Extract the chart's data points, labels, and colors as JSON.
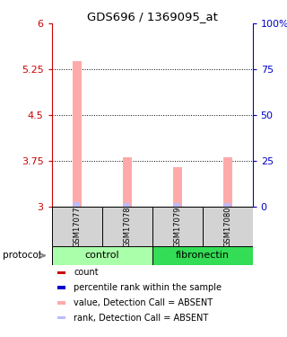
{
  "title": "GDS696 / 1369095_at",
  "samples": [
    "GSM17077",
    "GSM17078",
    "GSM17079",
    "GSM17080"
  ],
  "bar_values": [
    5.38,
    3.82,
    3.65,
    3.82
  ],
  "rank_values": [
    3.08,
    3.07,
    3.06,
    3.07
  ],
  "bar_color_absent": "#ffaaaa",
  "rank_color_absent": "#bbbbff",
  "ylim": [
    3.0,
    6.0
  ],
  "yticks_left": [
    3.0,
    3.75,
    4.5,
    5.25,
    6.0
  ],
  "yticks_right": [
    0,
    25,
    50,
    75,
    100
  ],
  "ytick_labels_left": [
    "3",
    "3.75",
    "4.5",
    "5.25",
    "6"
  ],
  "ytick_labels_right": [
    "0",
    "25",
    "50",
    "75",
    "100%"
  ],
  "left_axis_color": "#cc0000",
  "right_axis_color": "#0000cc",
  "group_colors": {
    "control": "#aaffaa",
    "fibronectin": "#33dd55"
  },
  "group_ranges": [
    [
      "control",
      0,
      1
    ],
    [
      "fibronectin",
      2,
      3
    ]
  ],
  "legend_items": [
    {
      "color": "#cc0000",
      "label": "count"
    },
    {
      "color": "#0000cc",
      "label": "percentile rank within the sample"
    },
    {
      "color": "#ffaaaa",
      "label": "value, Detection Call = ABSENT"
    },
    {
      "color": "#bbbbff",
      "label": "rank, Detection Call = ABSENT"
    }
  ],
  "protocol_label": "protocol",
  "background_color": "#ffffff",
  "bar_width": 0.18,
  "rank_bar_width": 0.12
}
